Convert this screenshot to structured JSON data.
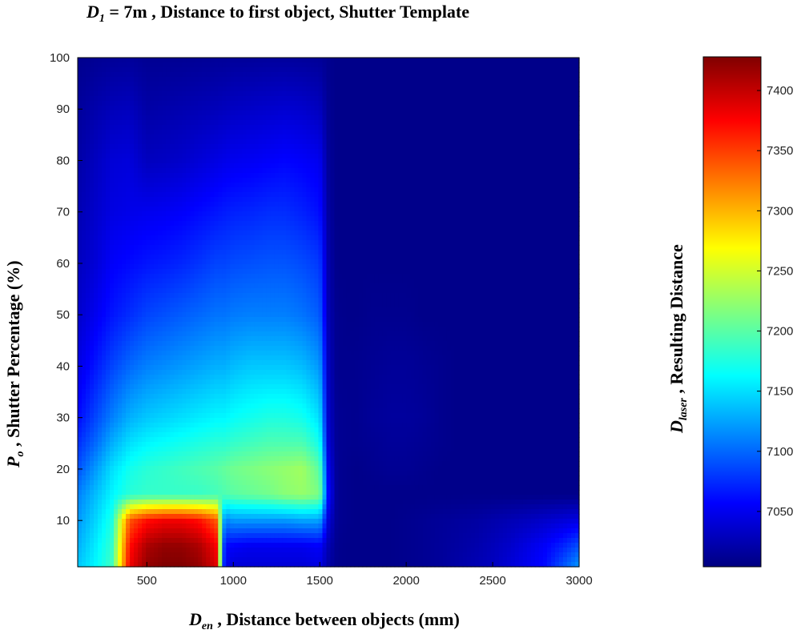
{
  "title": {
    "d_symbol": "D",
    "d_sub": "1",
    "rest": " = 7m ,   Distance to first object, Shutter Template"
  },
  "x_axis": {
    "symbol": "D",
    "sub": "en",
    "rest": " , Distance between objects (mm)"
  },
  "y_axis": {
    "symbol": "P",
    "sub": "o",
    "rest": " , Shutter Percentage (%)"
  },
  "colorbar": {
    "symbol": "D",
    "sub": "laser",
    "rest": " , Resulting Distance",
    "colormap": "jet",
    "colors": [
      "#000080",
      "#0000ff",
      "#00ffff",
      "#ffff00",
      "#ff0000",
      "#800000"
    ],
    "range": [
      7004,
      7428
    ],
    "ticks": [
      "7050",
      "7100",
      "7150",
      "7200",
      "7250",
      "7300",
      "7350",
      "7400"
    ]
  },
  "chart_data": {
    "type": "heatmap",
    "title": "D1 = 7m , Distance to first object, Shutter Template",
    "xlabel": "Den , Distance between objects (mm)",
    "ylabel": "Po , Shutter Percentage (%)",
    "colorbar_label": "Dlaser , Resulting Distance",
    "xlim": [
      100,
      3000
    ],
    "ylim": [
      1,
      100
    ],
    "zlim": [
      7004,
      7428
    ],
    "x_ticks": [
      "500",
      "1000",
      "1500",
      "2000",
      "2500",
      "3000"
    ],
    "y_ticks": [
      "10",
      "20",
      "30",
      "40",
      "50",
      "60",
      "70",
      "80",
      "90",
      "100"
    ],
    "x": [
      100,
      200,
      300,
      400,
      500,
      600,
      700,
      800,
      900,
      950,
      1000,
      1100,
      1200,
      1300,
      1400,
      1500,
      1550,
      1600,
      1700,
      1800,
      1900,
      2000,
      2100,
      2200,
      2300,
      2400,
      2500,
      2600,
      2700,
      2800,
      2900,
      3000
    ],
    "y": [
      1,
      5,
      10,
      15,
      20,
      25,
      30,
      40,
      50,
      60,
      70,
      80,
      90,
      100
    ],
    "z": [
      [
        7140,
        7160,
        7190,
        7380,
        7420,
        7428,
        7428,
        7420,
        7390,
        7050,
        7040,
        7040,
        7040,
        7040,
        7040,
        7045,
        7020,
        7010,
        7008,
        7008,
        7008,
        7010,
        7012,
        7015,
        7020,
        7025,
        7030,
        7040,
        7050,
        7060,
        7090,
        7120
      ],
      [
        7130,
        7155,
        7185,
        7370,
        7410,
        7420,
        7420,
        7410,
        7380,
        7060,
        7055,
        7050,
        7050,
        7050,
        7050,
        7055,
        7025,
        7010,
        7008,
        7008,
        7008,
        7010,
        7012,
        7015,
        7018,
        7022,
        7028,
        7035,
        7045,
        7055,
        7070,
        7090
      ],
      [
        7120,
        7145,
        7175,
        7340,
        7370,
        7380,
        7380,
        7370,
        7340,
        7110,
        7120,
        7120,
        7120,
        7120,
        7125,
        7125,
        7040,
        7012,
        7008,
        7008,
        7008,
        7010,
        7012,
        7014,
        7016,
        7018,
        7022,
        7026,
        7030,
        7035,
        7040,
        7045
      ],
      [
        7110,
        7135,
        7160,
        7180,
        7185,
        7185,
        7185,
        7185,
        7190,
        7195,
        7200,
        7205,
        7210,
        7220,
        7225,
        7215,
        7060,
        7012,
        7008,
        7008,
        7008,
        7008,
        7008,
        7008,
        7008,
        7008,
        7008,
        7008,
        7008,
        7008,
        7008,
        7008
      ],
      [
        7090,
        7120,
        7150,
        7170,
        7180,
        7185,
        7190,
        7195,
        7200,
        7205,
        7210,
        7215,
        7220,
        7225,
        7230,
        7200,
        7050,
        7012,
        7008,
        7010,
        7012,
        7012,
        7010,
        7008,
        7008,
        7008,
        7008,
        7008,
        7008,
        7008,
        7008,
        7008
      ],
      [
        7075,
        7100,
        7130,
        7150,
        7160,
        7165,
        7170,
        7175,
        7180,
        7180,
        7185,
        7190,
        7195,
        7195,
        7195,
        7170,
        7040,
        7012,
        7010,
        7012,
        7014,
        7014,
        7012,
        7010,
        7008,
        7008,
        7008,
        7008,
        7008,
        7008,
        7008,
        7008
      ],
      [
        7060,
        7085,
        7110,
        7130,
        7140,
        7145,
        7150,
        7155,
        7160,
        7160,
        7165,
        7170,
        7175,
        7175,
        7170,
        7150,
        7035,
        7012,
        7010,
        7014,
        7016,
        7016,
        7014,
        7010,
        7008,
        7008,
        7008,
        7008,
        7008,
        7008,
        7008,
        7008
      ],
      [
        7045,
        7065,
        7085,
        7100,
        7110,
        7115,
        7120,
        7125,
        7130,
        7130,
        7135,
        7140,
        7140,
        7140,
        7135,
        7120,
        7030,
        7010,
        7010,
        7012,
        7014,
        7014,
        7012,
        7010,
        7008,
        7008,
        7008,
        7008,
        7008,
        7008,
        7008,
        7008
      ],
      [
        7035,
        7050,
        7065,
        7075,
        7085,
        7090,
        7095,
        7100,
        7105,
        7105,
        7108,
        7110,
        7110,
        7110,
        7105,
        7095,
        7025,
        7010,
        7008,
        7010,
        7010,
        7010,
        7008,
        7008,
        7008,
        7008,
        7008,
        7008,
        7008,
        7008,
        7008,
        7008
      ],
      [
        7030,
        7040,
        7055,
        7060,
        7065,
        7068,
        7072,
        7078,
        7085,
        7085,
        7088,
        7090,
        7092,
        7092,
        7088,
        7080,
        7022,
        7008,
        7008,
        7008,
        7008,
        7008,
        7008,
        7008,
        7008,
        7008,
        7008,
        7008,
        7008,
        7008,
        7008,
        7008
      ],
      [
        7025,
        7035,
        7045,
        7048,
        7050,
        7052,
        7055,
        7060,
        7065,
        7068,
        7070,
        7072,
        7075,
        7075,
        7070,
        7062,
        7018,
        7008,
        7008,
        7008,
        7008,
        7008,
        7008,
        7008,
        7008,
        7008,
        7008,
        7008,
        7008,
        7008,
        7008,
        7008
      ],
      [
        7020,
        7030,
        7040,
        7042,
        7030,
        7032,
        7035,
        7040,
        7045,
        7048,
        7050,
        7052,
        7055,
        7058,
        7055,
        7050,
        7015,
        7008,
        7008,
        7008,
        7008,
        7008,
        7008,
        7008,
        7008,
        7008,
        7008,
        7008,
        7008,
        7008,
        7008,
        7008
      ],
      [
        7015,
        7022,
        7028,
        7030,
        7020,
        7022,
        7024,
        7026,
        7028,
        7030,
        7032,
        7034,
        7036,
        7038,
        7036,
        7030,
        7012,
        7008,
        7008,
        7008,
        7008,
        7008,
        7008,
        7008,
        7008,
        7008,
        7008,
        7008,
        7008,
        7008,
        7008,
        7008
      ],
      [
        7010,
        7012,
        7014,
        7015,
        7012,
        7012,
        7012,
        7013,
        7014,
        7014,
        7015,
        7015,
        7016,
        7016,
        7015,
        7014,
        7010,
        7008,
        7008,
        7008,
        7008,
        7008,
        7008,
        7008,
        7008,
        7008,
        7008,
        7008,
        7008,
        7008,
        7008,
        7008
      ]
    ]
  }
}
